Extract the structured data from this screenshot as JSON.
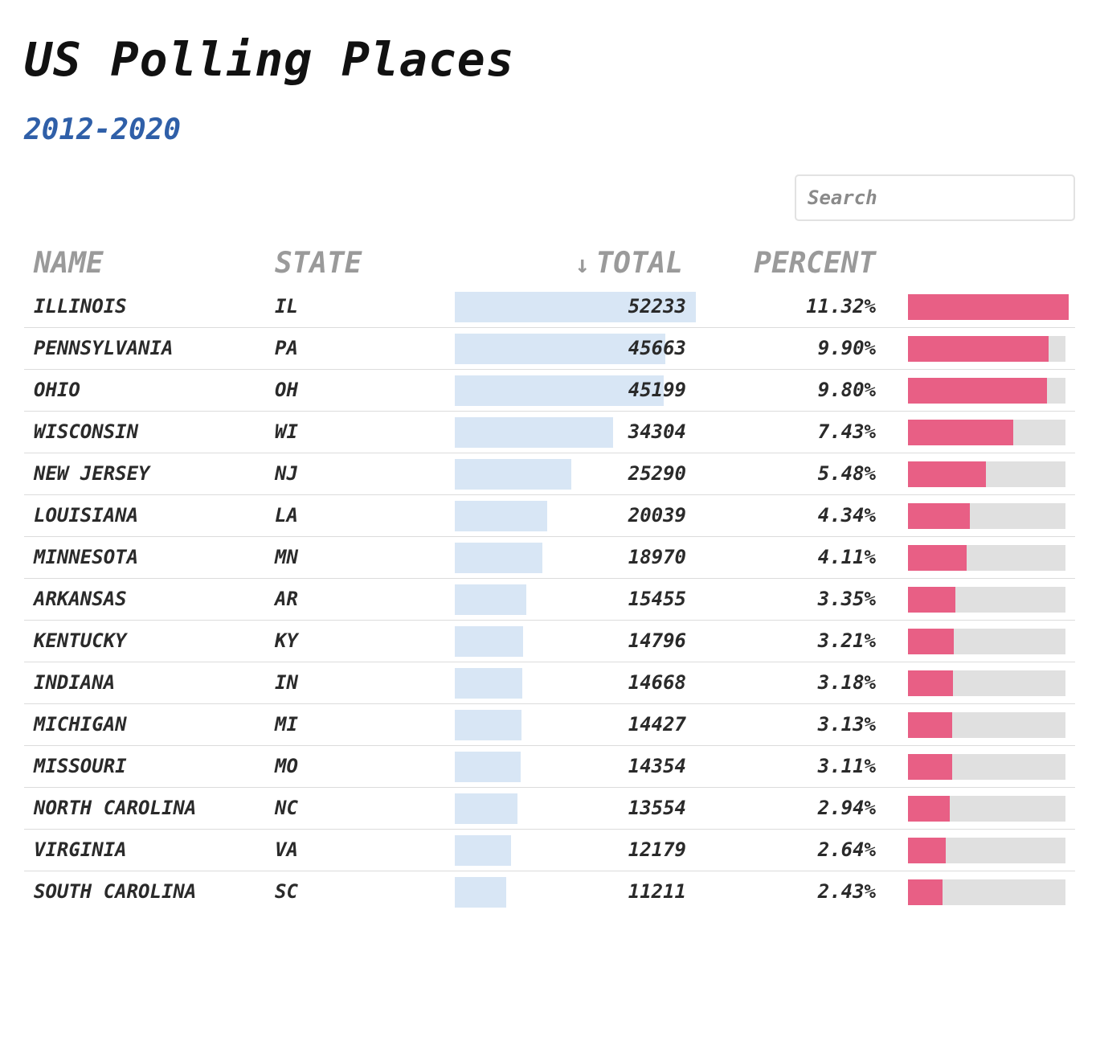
{
  "header": {
    "title": "US Polling Places",
    "subtitle": "2012-2020"
  },
  "search": {
    "placeholder": "Search",
    "value": ""
  },
  "table": {
    "columns": {
      "name": "NAME",
      "state": "STATE",
      "total": "TOTAL",
      "percent": "PERCENT"
    },
    "sort": {
      "column": "total",
      "direction": "descending",
      "icon": "arrow-down-icon",
      "glyph": "↓"
    },
    "total_max": 52233,
    "percent_max": 11.32,
    "colors": {
      "total_bar": "#d8e6f5",
      "percent_bar": "#e85f85",
      "percent_track": "#e0e0e0",
      "subtitle": "#2f5fa8"
    },
    "rows": [
      {
        "name": "ILLINOIS",
        "state": "IL",
        "total": "52233",
        "percent": "11.32%",
        "total_value": 52233,
        "percent_value": 11.32
      },
      {
        "name": "PENNSYLVANIA",
        "state": "PA",
        "total": "45663",
        "percent": "9.90%",
        "total_value": 45663,
        "percent_value": 9.9
      },
      {
        "name": "OHIO",
        "state": "OH",
        "total": "45199",
        "percent": "9.80%",
        "total_value": 45199,
        "percent_value": 9.8
      },
      {
        "name": "WISCONSIN",
        "state": "WI",
        "total": "34304",
        "percent": "7.43%",
        "total_value": 34304,
        "percent_value": 7.43
      },
      {
        "name": "NEW JERSEY",
        "state": "NJ",
        "total": "25290",
        "percent": "5.48%",
        "total_value": 25290,
        "percent_value": 5.48
      },
      {
        "name": "LOUISIANA",
        "state": "LA",
        "total": "20039",
        "percent": "4.34%",
        "total_value": 20039,
        "percent_value": 4.34
      },
      {
        "name": "MINNESOTA",
        "state": "MN",
        "total": "18970",
        "percent": "4.11%",
        "total_value": 18970,
        "percent_value": 4.11
      },
      {
        "name": "ARKANSAS",
        "state": "AR",
        "total": "15455",
        "percent": "3.35%",
        "total_value": 15455,
        "percent_value": 3.35
      },
      {
        "name": "KENTUCKY",
        "state": "KY",
        "total": "14796",
        "percent": "3.21%",
        "total_value": 14796,
        "percent_value": 3.21
      },
      {
        "name": "INDIANA",
        "state": "IN",
        "total": "14668",
        "percent": "3.18%",
        "total_value": 14668,
        "percent_value": 3.18
      },
      {
        "name": "MICHIGAN",
        "state": "MI",
        "total": "14427",
        "percent": "3.13%",
        "total_value": 14427,
        "percent_value": 3.13
      },
      {
        "name": "MISSOURI",
        "state": "MO",
        "total": "14354",
        "percent": "3.11%",
        "total_value": 14354,
        "percent_value": 3.11
      },
      {
        "name": "NORTH CAROLINA",
        "state": "NC",
        "total": "13554",
        "percent": "2.94%",
        "total_value": 13554,
        "percent_value": 2.94
      },
      {
        "name": "VIRGINIA",
        "state": "VA",
        "total": "12179",
        "percent": "2.64%",
        "total_value": 12179,
        "percent_value": 2.64
      },
      {
        "name": "SOUTH CAROLINA",
        "state": "SC",
        "total": "11211",
        "percent": "2.43%",
        "total_value": 11211,
        "percent_value": 2.43
      }
    ]
  }
}
